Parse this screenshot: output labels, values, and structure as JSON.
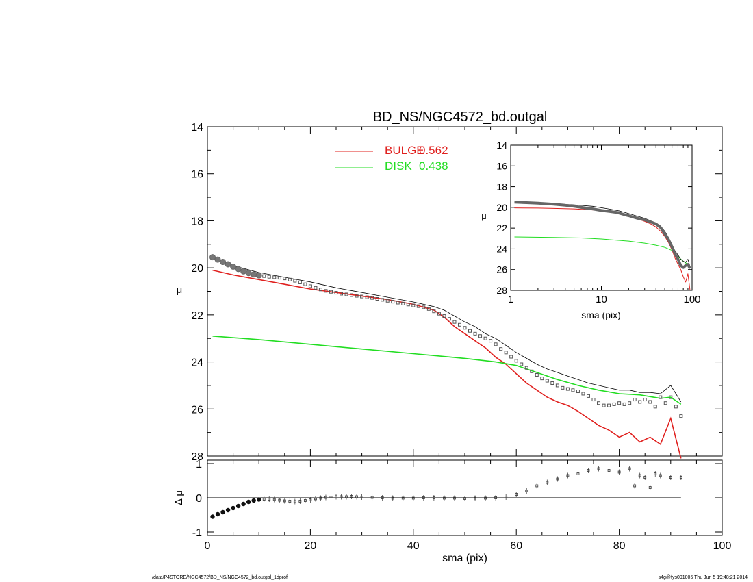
{
  "footer": {
    "path": "/data/P4STORE/NGC4572/BD_NS/NGC4572_bd.outgal_1dprof",
    "stamp": "s4g@fys091005  Thu Jun  5 19:48:21 2014"
  },
  "chart_data": [
    {
      "id": "main-profile",
      "type": "scatter",
      "title": "BD_NS/NGC4572_bd.outgal",
      "xlabel": "",
      "ylabel": "μ",
      "xlim": [
        0,
        100
      ],
      "ylim": [
        28,
        14
      ],
      "y_inverted": true,
      "yticks": [
        14,
        16,
        18,
        20,
        22,
        24,
        26,
        28
      ],
      "legend": {
        "placement": "top-center",
        "entries": [
          {
            "label": "BULGE",
            "value": "0.562",
            "color": "#e0201e"
          },
          {
            "label": "DISK",
            "value": "0.438",
            "color": "#22dd22"
          }
        ]
      },
      "series": [
        {
          "name": "BULGE",
          "kind": "line",
          "color": "#e0201e",
          "x": [
            1,
            5,
            10,
            15,
            20,
            25,
            30,
            35,
            40,
            44,
            46,
            48,
            50,
            52,
            54,
            56,
            58,
            60,
            62,
            64,
            66,
            68,
            70,
            72,
            74,
            76,
            78,
            80,
            82,
            84,
            86,
            88,
            90,
            92
          ],
          "y": [
            20.1,
            20.3,
            20.5,
            20.7,
            20.9,
            21.05,
            21.2,
            21.35,
            21.55,
            21.8,
            22.1,
            22.5,
            22.8,
            23.1,
            23.4,
            23.8,
            24.1,
            24.5,
            24.9,
            25.2,
            25.5,
            25.7,
            25.85,
            26.1,
            26.4,
            26.7,
            26.9,
            27.2,
            27.0,
            27.4,
            27.2,
            27.5,
            26.4,
            28.1
          ]
        },
        {
          "name": "DISK",
          "kind": "line",
          "color": "#22dd22",
          "x": [
            1,
            10,
            20,
            30,
            40,
            50,
            56,
            60,
            64,
            68,
            72,
            76,
            80,
            84,
            88,
            90,
            92
          ],
          "y": [
            22.9,
            23.05,
            23.25,
            23.45,
            23.65,
            23.85,
            24.0,
            24.15,
            24.45,
            24.75,
            25.0,
            25.2,
            25.35,
            25.4,
            25.55,
            25.5,
            25.8
          ]
        },
        {
          "name": "",
          "kind": "line",
          "color": "#000000",
          "x": [
            1,
            5,
            10,
            15,
            20,
            25,
            30,
            35,
            40,
            44,
            46,
            48,
            50,
            52,
            54,
            56,
            58,
            60,
            62,
            64,
            66,
            68,
            70,
            72,
            74,
            76,
            78,
            80,
            82,
            84,
            86,
            88,
            90,
            92
          ],
          "y": [
            19.55,
            19.9,
            20.2,
            20.4,
            20.6,
            20.85,
            21.05,
            21.25,
            21.45,
            21.65,
            21.8,
            22.05,
            22.3,
            22.5,
            22.8,
            23.0,
            23.3,
            23.6,
            23.85,
            24.1,
            24.3,
            24.45,
            24.6,
            24.75,
            24.9,
            25.0,
            25.1,
            25.2,
            25.2,
            25.3,
            25.3,
            25.35,
            25.0,
            25.7
          ]
        },
        {
          "name": "",
          "kind": "points",
          "color": "#555555",
          "x": [
            1,
            2,
            3,
            4,
            5,
            6,
            7,
            8,
            9,
            10,
            11,
            12,
            13,
            14,
            15,
            16,
            17,
            18,
            19,
            20,
            21,
            22,
            23,
            24,
            25,
            26,
            27,
            28,
            29,
            30,
            31,
            32,
            33,
            34,
            35,
            36,
            37,
            38,
            39,
            40,
            41,
            42,
            43,
            44,
            45,
            46,
            47,
            48,
            49,
            50,
            51,
            52,
            53,
            54,
            55,
            56,
            57,
            58,
            59,
            60,
            61,
            62,
            63,
            64,
            65,
            66,
            67,
            68,
            69,
            70,
            71,
            72,
            73,
            74,
            75,
            76,
            77,
            78,
            79,
            80,
            81,
            82,
            83,
            84,
            85,
            86,
            87,
            88,
            89,
            90,
            91,
            92
          ],
          "y": [
            19.55,
            19.65,
            19.75,
            19.85,
            19.95,
            20.05,
            20.15,
            20.22,
            20.28,
            20.32,
            20.35,
            20.38,
            20.4,
            20.42,
            20.45,
            20.5,
            20.55,
            20.62,
            20.7,
            20.78,
            20.85,
            20.92,
            20.98,
            21.02,
            21.06,
            21.1,
            21.13,
            21.16,
            21.19,
            21.22,
            21.25,
            21.28,
            21.32,
            21.36,
            21.4,
            21.44,
            21.48,
            21.52,
            21.56,
            21.6,
            21.63,
            21.68,
            21.75,
            21.85,
            21.95,
            22.05,
            22.17,
            22.3,
            22.42,
            22.55,
            22.68,
            22.8,
            22.9,
            23.0,
            23.1,
            23.25,
            23.45,
            23.6,
            23.78,
            23.95,
            24.1,
            24.25,
            24.4,
            24.55,
            24.7,
            24.8,
            24.9,
            25.0,
            25.1,
            25.15,
            25.2,
            25.25,
            25.35,
            25.45,
            25.6,
            25.75,
            25.85,
            25.85,
            25.8,
            25.75,
            25.8,
            25.75,
            25.6,
            25.7,
            25.6,
            25.7,
            25.9,
            25.5,
            25.75,
            25.5,
            25.9,
            26.3
          ]
        }
      ]
    },
    {
      "id": "inset-log",
      "type": "line",
      "xlabel": "sma (pix)",
      "ylabel": "μ",
      "xscale": "log",
      "xlim": [
        1,
        100
      ],
      "xticks": [
        1,
        10,
        100
      ],
      "ylim": [
        28,
        14
      ],
      "y_inverted": true,
      "yticks": [
        14,
        16,
        18,
        20,
        22,
        24,
        26,
        28
      ],
      "series": [
        {
          "name": "BULGE",
          "color": "#e0201e",
          "x": [
            1.1,
            2,
            3,
            5,
            8,
            12,
            16,
            20,
            25,
            30,
            35,
            40,
            45,
            50,
            55,
            60,
            65,
            70,
            75,
            80,
            85,
            90,
            95
          ],
          "y": [
            20.05,
            20.07,
            20.1,
            20.15,
            20.25,
            20.4,
            20.6,
            20.85,
            21.1,
            21.35,
            21.6,
            21.9,
            22.3,
            22.8,
            23.4,
            24.1,
            24.9,
            25.5,
            26.0,
            26.7,
            27.2,
            26.4,
            28.0
          ]
        },
        {
          "name": "DISK",
          "color": "#22dd22",
          "x": [
            1.1,
            3,
            6,
            10,
            20,
            30,
            40,
            50,
            60,
            70,
            80,
            90,
            95
          ],
          "y": [
            22.85,
            22.9,
            22.95,
            23.05,
            23.25,
            23.45,
            23.65,
            23.85,
            24.15,
            24.75,
            25.2,
            25.5,
            25.8
          ]
        },
        {
          "name": "",
          "color": "#000000",
          "x": [
            1.1,
            2,
            3,
            5,
            8,
            12,
            16,
            20,
            25,
            30,
            35,
            40,
            45,
            50,
            55,
            60,
            65,
            70,
            75,
            80,
            85,
            90,
            95
          ],
          "y": [
            19.55,
            19.6,
            19.65,
            19.75,
            19.9,
            20.15,
            20.35,
            20.6,
            20.85,
            21.05,
            21.3,
            21.5,
            21.8,
            22.3,
            22.9,
            23.6,
            24.2,
            24.6,
            25.0,
            25.2,
            25.3,
            25.0,
            25.7
          ]
        },
        {
          "name": "",
          "color": "#666666",
          "x": [
            1.1,
            1.5,
            2,
            3,
            4,
            5,
            6,
            8,
            10,
            12,
            15,
            18,
            20,
            25,
            30,
            35,
            40,
            45,
            50,
            55,
            60,
            65,
            70,
            75,
            80,
            85,
            90,
            95
          ],
          "y": [
            19.5,
            19.55,
            19.6,
            19.7,
            19.8,
            19.9,
            20.0,
            20.15,
            20.3,
            20.38,
            20.5,
            20.7,
            20.8,
            21.05,
            21.2,
            21.4,
            21.6,
            21.95,
            22.55,
            23.1,
            23.8,
            24.5,
            25.0,
            25.6,
            25.8,
            25.6,
            25.5,
            25.9
          ]
        }
      ]
    },
    {
      "id": "residuals",
      "type": "scatter",
      "xlabel": "sma (pix)",
      "ylabel": "Δ μ",
      "xlim": [
        0,
        100
      ],
      "xticks": [
        0,
        20,
        40,
        60,
        80,
        100
      ],
      "ylim": [
        -1,
        1
      ],
      "yticks": [
        -1,
        0,
        1
      ],
      "zero_line": true,
      "series": [
        {
          "name": "",
          "color": "#222222",
          "x": [
            1,
            2,
            3,
            4,
            5,
            6,
            7,
            8,
            9,
            10,
            11,
            12,
            13,
            14,
            15,
            16,
            17,
            18,
            19,
            20,
            21,
            22,
            23,
            24,
            25,
            26,
            27,
            28,
            29,
            30,
            32,
            34,
            36,
            38,
            40,
            42,
            44,
            46,
            48,
            50,
            52,
            54,
            56,
            58,
            60,
            62,
            64,
            66,
            68,
            70,
            72,
            74,
            76,
            78,
            80,
            82,
            83,
            84,
            85,
            86,
            87,
            88,
            90,
            92
          ],
          "y": [
            -0.55,
            -0.48,
            -0.42,
            -0.36,
            -0.3,
            -0.24,
            -0.18,
            -0.12,
            -0.08,
            -0.05,
            -0.04,
            -0.04,
            -0.05,
            -0.07,
            -0.09,
            -0.1,
            -0.11,
            -0.1,
            -0.08,
            -0.06,
            -0.03,
            -0.01,
            0.01,
            0.02,
            0.03,
            0.03,
            0.03,
            0.04,
            0.03,
            0.02,
            0.01,
            0.0,
            -0.01,
            -0.01,
            -0.01,
            0.0,
            0.0,
            -0.01,
            -0.01,
            -0.02,
            -0.01,
            -0.01,
            0.0,
            0.02,
            0.1,
            0.2,
            0.35,
            0.45,
            0.55,
            0.65,
            0.7,
            0.8,
            0.85,
            0.8,
            0.75,
            0.85,
            0.35,
            0.65,
            0.6,
            0.3,
            0.7,
            0.65,
            0.6,
            0.6
          ]
        }
      ]
    }
  ]
}
